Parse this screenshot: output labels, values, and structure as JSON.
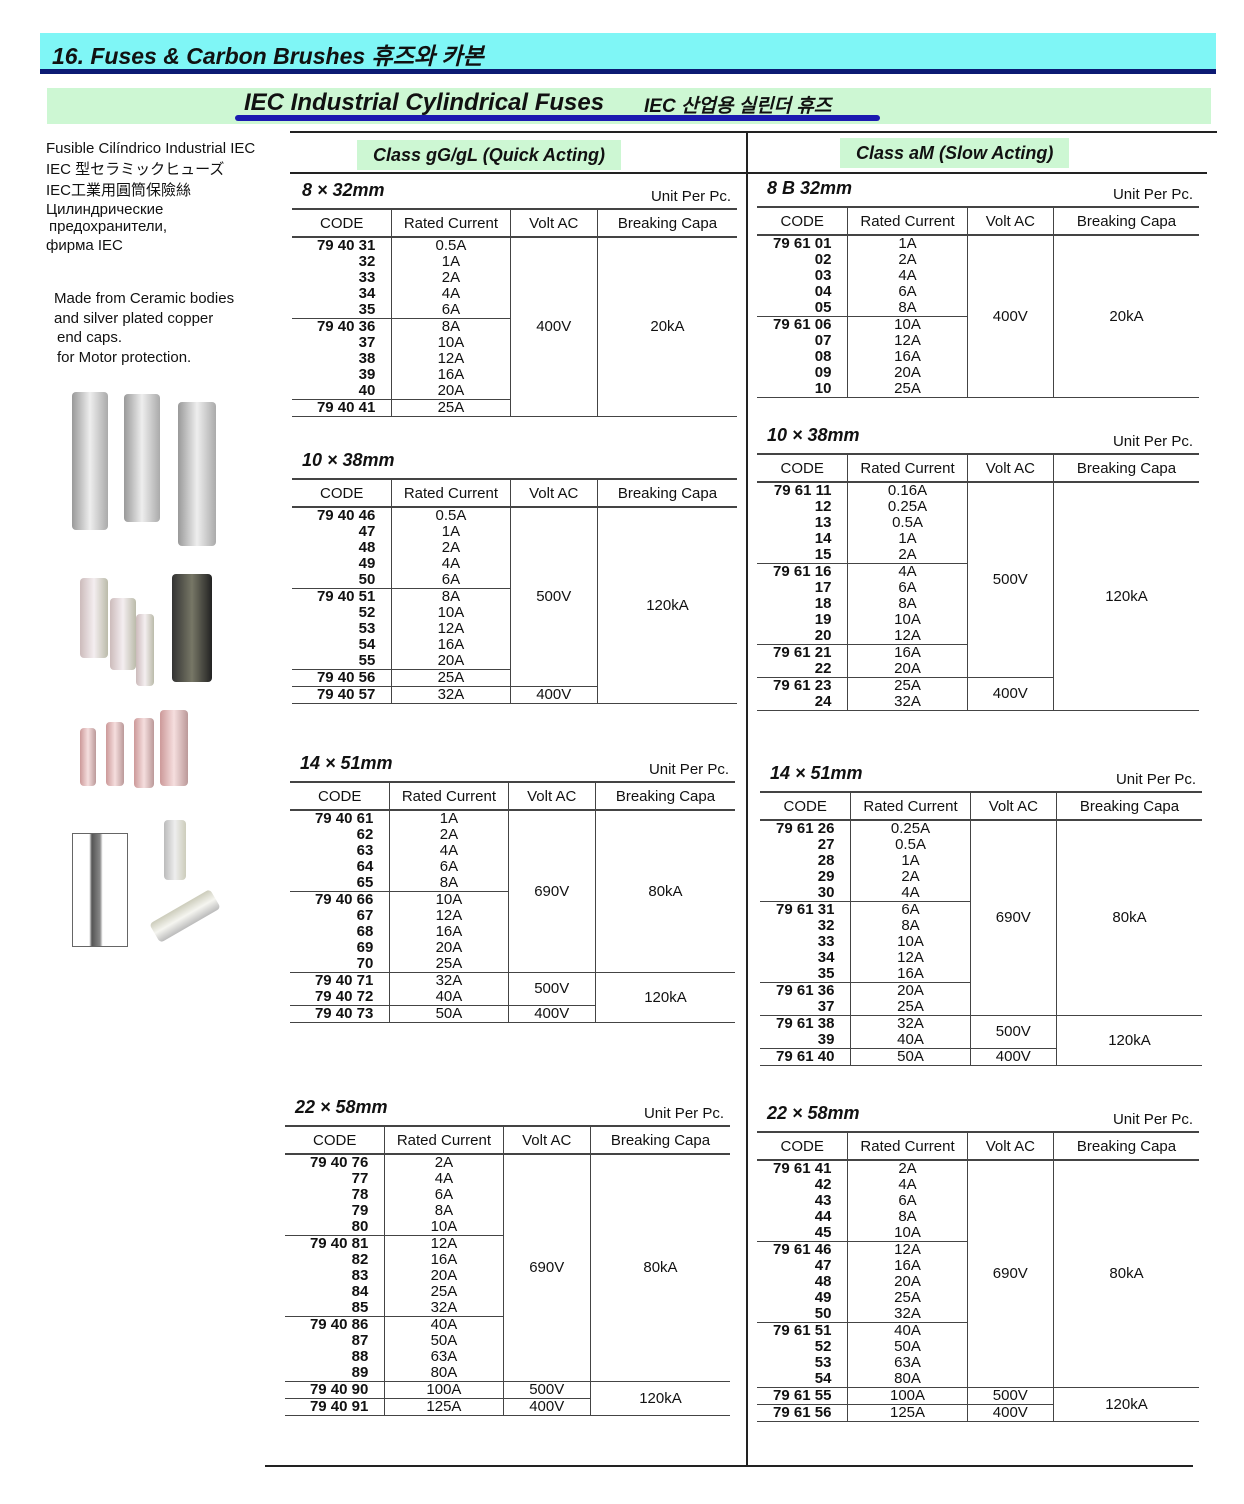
{
  "header": {
    "title": "16. Fuses & Carbon Brushes  휴즈와 카본",
    "subtitle": "IEC Industrial Cylindrical Fuses",
    "subtitle_kr": "IEC 산업용 실린더 휴즈"
  },
  "left_text": {
    "names": [
      "Fusible Cilíndrico Industrial IEC",
      "IEC 型セラミックヒューズ",
      "IEC工業用圓筒保險絲",
      "Цилиндрические",
      " предохранители,",
      "фирма IEC"
    ],
    "description": [
      "Made from Ceramic bodies",
      " and silver plated copper",
      "  end caps.",
      " for Motor protection."
    ]
  },
  "columns": {
    "code": "CODE",
    "current": "Rated Current",
    "volt": "Volt  AC",
    "breaking": "Breaking Capa",
    "unit": "Unit Per Pc."
  },
  "sections": [
    {
      "title": "Class gG/gL (Quick Acting)",
      "tables": [
        {
          "size": "8 × 32mm",
          "unit": true,
          "groups": [
            {
              "codes": [
                "79 40 31",
                "32",
                "33",
                "34",
                "35"
              ],
              "currents": [
                "0.5A",
                "1A",
                "2A",
                "4A",
                "6A"
              ]
            },
            {
              "codes": [
                "79 40 36",
                "37",
                "38",
                "39",
                "40"
              ],
              "currents": [
                "8A",
                "10A",
                "12A",
                "16A",
                "20A"
              ]
            },
            {
              "codes": [
                "79 40 41"
              ],
              "currents": [
                "25A"
              ]
            }
          ],
          "volt": [
            {
              "v": "400V",
              "span": 3
            }
          ],
          "breaking": [
            {
              "v": "20kA",
              "span": 3
            }
          ]
        },
        {
          "size": "10 × 38mm",
          "unit": false,
          "groups": [
            {
              "codes": [
                "79 40 46",
                "47",
                "48",
                "49",
                "50"
              ],
              "currents": [
                "0.5A",
                "1A",
                "2A",
                "4A",
                "6A"
              ]
            },
            {
              "codes": [
                "79 40 51",
                "52",
                "53",
                "54",
                "55"
              ],
              "currents": [
                "8A",
                "10A",
                "12A",
                "16A",
                "20A"
              ]
            },
            {
              "codes": [
                "79 40 56"
              ],
              "currents": [
                "25A"
              ]
            },
            {
              "codes": [
                "79 40 57"
              ],
              "currents": [
                "32A"
              ]
            }
          ],
          "volt": [
            {
              "v": "500V",
              "span": 3
            },
            {
              "v": "400V",
              "span": 1
            }
          ],
          "breaking": [
            {
              "v": "120kA",
              "span": 4
            }
          ]
        },
        {
          "size": "14 × 51mm",
          "unit": true,
          "groups": [
            {
              "codes": [
                "79 40 61",
                "62",
                "63",
                "64",
                "65"
              ],
              "currents": [
                "1A",
                "2A",
                "4A",
                "6A",
                "8A"
              ]
            },
            {
              "codes": [
                "79 40 66",
                "67",
                "68",
                "69",
                "70"
              ],
              "currents": [
                "10A",
                "12A",
                "16A",
                "20A",
                "25A"
              ]
            },
            {
              "codes": [
                "79 40 71",
                "79 40 72"
              ],
              "currents": [
                "32A",
                "40A"
              ]
            },
            {
              "codes": [
                "79 40 73"
              ],
              "currents": [
                "50A"
              ]
            }
          ],
          "volt": [
            {
              "v": "690V",
              "span": 2
            },
            {
              "v": "500V",
              "span": 1
            },
            {
              "v": "400V",
              "span": 1
            }
          ],
          "breaking": [
            {
              "v": "80kA",
              "span": 2
            },
            {
              "v": "120kA",
              "span": 2
            }
          ]
        },
        {
          "size": "22 × 58mm",
          "unit": true,
          "groups": [
            {
              "codes": [
                "79 40 76",
                "77",
                "78",
                "79",
                "80"
              ],
              "currents": [
                "2A",
                "4A",
                "6A",
                "8A",
                "10A"
              ]
            },
            {
              "codes": [
                "79 40 81",
                "82",
                "83",
                "84",
                "85"
              ],
              "currents": [
                "12A",
                "16A",
                "20A",
                "25A",
                "32A"
              ]
            },
            {
              "codes": [
                "79 40 86",
                "87",
                "88",
                "89"
              ],
              "currents": [
                "40A",
                "50A",
                "63A",
                "80A"
              ]
            },
            {
              "codes": [
                "79 40 90"
              ],
              "currents": [
                "100A"
              ]
            },
            {
              "codes": [
                "79 40 91"
              ],
              "currents": [
                "125A"
              ]
            }
          ],
          "volt": [
            {
              "v": "690V",
              "span": 3
            },
            {
              "v": "500V",
              "span": 1
            },
            {
              "v": "400V",
              "span": 1
            }
          ],
          "breaking": [
            {
              "v": "80kA",
              "span": 3
            },
            {
              "v": "120kA",
              "span": 2
            }
          ]
        }
      ]
    },
    {
      "title": "Class aM (Slow Acting)",
      "tables": [
        {
          "size": "8 B 32mm",
          "unit": true,
          "groups": [
            {
              "codes": [
                "79 61 01",
                "02",
                "03",
                "04",
                "05"
              ],
              "currents": [
                "1A",
                "2A",
                "4A",
                "6A",
                "8A"
              ]
            },
            {
              "codes": [
                "79 61 06",
                "07",
                "08",
                "09",
                "10"
              ],
              "currents": [
                "10A",
                "12A",
                "16A",
                "20A",
                "25A"
              ]
            }
          ],
          "volt": [
            {
              "v": "400V",
              "span": 2
            }
          ],
          "breaking": [
            {
              "v": "20kA",
              "span": 2
            }
          ]
        },
        {
          "size": "10 × 38mm",
          "unit": true,
          "groups": [
            {
              "codes": [
                "79 61 11",
                "12",
                "13",
                "14",
                "15"
              ],
              "currents": [
                "0.16A",
                "0.25A",
                "0.5A",
                "1A",
                "2A"
              ]
            },
            {
              "codes": [
                "79 61 16",
                "17",
                "18",
                "19",
                "20"
              ],
              "currents": [
                "4A",
                "6A",
                "8A",
                "10A",
                "12A"
              ]
            },
            {
              "codes": [
                "79 61 21",
                "22"
              ],
              "currents": [
                "16A",
                "20A"
              ]
            },
            {
              "codes": [
                "79 61 23",
                "24"
              ],
              "currents": [
                "25A",
                "32A"
              ]
            }
          ],
          "volt": [
            {
              "v": "500V",
              "span": 3
            },
            {
              "v": "400V",
              "span": 1
            }
          ],
          "breaking": [
            {
              "v": "120kA",
              "span": 4
            }
          ]
        },
        {
          "size": "14 × 51mm",
          "unit": true,
          "groups": [
            {
              "codes": [
                "79 61 26",
                "27",
                "28",
                "29",
                "30"
              ],
              "currents": [
                "0.25A",
                "0.5A",
                "1A",
                "2A",
                "4A"
              ]
            },
            {
              "codes": [
                "79 61 31",
                "32",
                "33",
                "34",
                "35"
              ],
              "currents": [
                "6A",
                "8A",
                "10A",
                "12A",
                "16A"
              ]
            },
            {
              "codes": [
                "79 61 36",
                "37"
              ],
              "currents": [
                "20A",
                "25A"
              ]
            },
            {
              "codes": [
                "79 61 38",
                "39"
              ],
              "currents": [
                "32A",
                "40A"
              ]
            },
            {
              "codes": [
                "79 61 40"
              ],
              "currents": [
                "50A"
              ]
            }
          ],
          "volt": [
            {
              "v": "690V",
              "span": 3
            },
            {
              "v": "500V",
              "span": 1
            },
            {
              "v": "400V",
              "span": 1
            }
          ],
          "breaking": [
            {
              "v": "80kA",
              "span": 3
            },
            {
              "v": "120kA",
              "span": 2
            }
          ]
        },
        {
          "size": "22 × 58mm",
          "unit": true,
          "groups": [
            {
              "codes": [
                "79 61 41",
                "42",
                "43",
                "44",
                "45"
              ],
              "currents": [
                "2A",
                "4A",
                "6A",
                "8A",
                "10A"
              ]
            },
            {
              "codes": [
                "79 61 46",
                "47",
                "48",
                "49",
                "50"
              ],
              "currents": [
                "12A",
                "16A",
                "20A",
                "25A",
                "32A"
              ]
            },
            {
              "codes": [
                "79 61 51",
                "52",
                "53",
                "54"
              ],
              "currents": [
                "40A",
                "50A",
                "63A",
                "80A"
              ]
            },
            {
              "codes": [
                "79 61 55"
              ],
              "currents": [
                "100A"
              ]
            },
            {
              "codes": [
                "79 61 56"
              ],
              "currents": [
                "125A"
              ]
            }
          ],
          "volt": [
            {
              "v": "690V",
              "span": 3
            },
            {
              "v": "500V",
              "span": 1
            },
            {
              "v": "400V",
              "span": 1
            }
          ],
          "breaking": [
            {
              "v": "80kA",
              "span": 3
            },
            {
              "v": "120kA",
              "span": 2
            }
          ]
        }
      ]
    }
  ]
}
